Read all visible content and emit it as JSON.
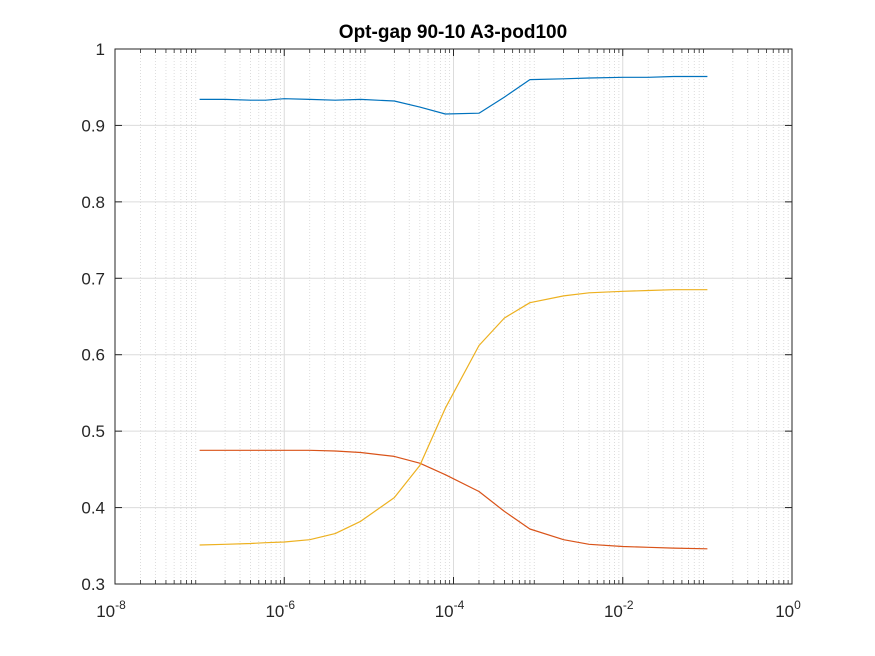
{
  "chart_data": {
    "type": "line",
    "title": "Opt-gap 90-10 A3-pod100",
    "xlabel": "",
    "ylabel": "",
    "xscale": "log",
    "xlim": [
      1e-08,
      1
    ],
    "ylim": [
      0.3,
      1
    ],
    "grid": true,
    "minor_grid": true,
    "legend": "none",
    "xticks": [
      {
        "base": "10",
        "exp": "-8"
      },
      {
        "base": "10",
        "exp": "-6"
      },
      {
        "base": "10",
        "exp": "-4"
      },
      {
        "base": "10",
        "exp": "-2"
      },
      {
        "base": "10",
        "exp": "0"
      }
    ],
    "yticks": [
      "0.3",
      "0.4",
      "0.5",
      "0.6",
      "0.7",
      "0.8",
      "0.9",
      "1"
    ],
    "x": [
      1e-07,
      2e-07,
      4e-07,
      6e-07,
      1e-06,
      2e-06,
      4e-06,
      8e-06,
      2e-05,
      4e-05,
      8e-05,
      0.0002,
      0.0004,
      0.0008,
      0.002,
      0.004,
      0.01,
      0.02,
      0.04,
      0.1
    ],
    "series": [
      {
        "color": "#0072bd",
        "values": [
          0.934,
          0.934,
          0.933,
          0.933,
          0.935,
          0.934,
          0.933,
          0.934,
          0.932,
          0.924,
          0.915,
          0.916,
          0.937,
          0.96,
          0.961,
          0.962,
          0.963,
          0.963,
          0.964,
          0.964
        ]
      },
      {
        "color": "#d95319",
        "values": [
          0.475,
          0.475,
          0.475,
          0.475,
          0.475,
          0.475,
          0.474,
          0.472,
          0.467,
          0.458,
          0.443,
          0.421,
          0.395,
          0.372,
          0.358,
          0.352,
          0.349,
          0.348,
          0.347,
          0.346
        ]
      },
      {
        "color": "#edb120",
        "values": [
          0.351,
          0.352,
          0.353,
          0.354,
          0.355,
          0.358,
          0.366,
          0.382,
          0.413,
          0.455,
          0.53,
          0.612,
          0.648,
          0.668,
          0.677,
          0.681,
          0.683,
          0.684,
          0.685,
          0.685
        ]
      }
    ]
  }
}
